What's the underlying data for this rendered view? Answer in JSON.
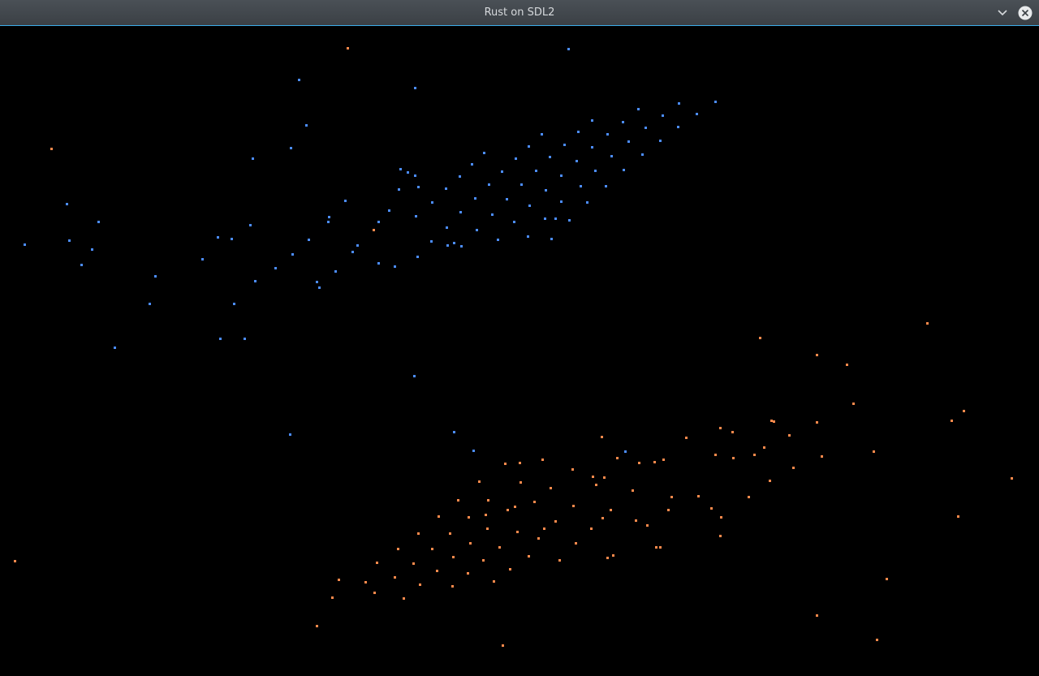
{
  "window": {
    "title": "Rust on SDL2",
    "controls": [
      {
        "name": "minimize-icon"
      },
      {
        "name": "close-icon"
      }
    ]
  },
  "colors": {
    "titlebar": "#41464c",
    "title_text": "#d6d9dc",
    "accent_line": "#3daee9",
    "background": "#000000",
    "blue_particle": "#4c8dff",
    "orange_particle": "#ff8a4c"
  }
}
